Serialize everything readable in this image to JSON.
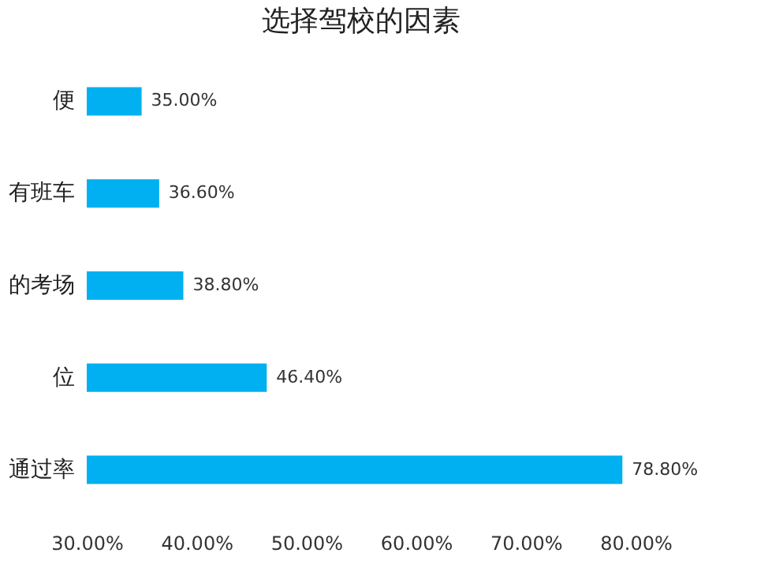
{
  "chart_data": {
    "type": "bar",
    "orientation": "horizontal",
    "title": "选择驾校的因素",
    "categories": [
      "便",
      "有班车",
      "的考场",
      "位",
      "通过率"
    ],
    "values": [
      35.0,
      36.6,
      38.8,
      46.4,
      78.8
    ],
    "color": "#00b0f0",
    "xlim": [
      30,
      80
    ],
    "xticks": [
      {
        "value": 30,
        "label": "30.00%"
      },
      {
        "value": 40,
        "label": "40.00%"
      },
      {
        "value": 50,
        "label": "50.00%"
      },
      {
        "value": 60,
        "label": "60.00%"
      },
      {
        "value": 70,
        "label": "70.00%"
      },
      {
        "value": 80,
        "label": "80.00%"
      }
    ],
    "value_labels": [
      "35.00%",
      "36.60%",
      "38.80%",
      "46.40%",
      "78.80%"
    ],
    "grid": false
  }
}
